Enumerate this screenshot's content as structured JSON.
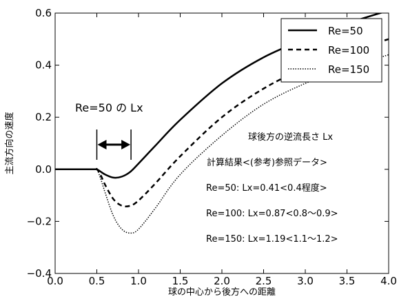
{
  "chart_data": {
    "type": "line",
    "title": "",
    "xlabel": "球の中心から後方への距離",
    "ylabel": "主流方向の速度",
    "xlim": [
      0.0,
      4.0
    ],
    "ylim": [
      -0.4,
      0.6
    ],
    "x_ticks": [
      "0.0",
      "0.5",
      "1.0",
      "1.5",
      "2.0",
      "2.5",
      "3.0",
      "3.5",
      "4.0"
    ],
    "y_ticks": [
      "0.6",
      "0.4",
      "0.2",
      "0.0",
      "−0.2",
      "−0.4"
    ],
    "grid": false,
    "legend_position": "top-right",
    "series": [
      {
        "name": "Re=50",
        "style": "solid",
        "color": "#000000",
        "x": [
          0.0,
          0.45,
          0.5,
          0.55,
          0.6,
          0.7,
          0.8,
          0.9,
          1.0,
          1.2,
          1.5,
          2.0,
          2.5,
          3.0,
          3.5,
          4.0
        ],
        "y": [
          0.0,
          0.0,
          0.0,
          -0.01,
          -0.02,
          -0.032,
          -0.028,
          -0.01,
          0.022,
          0.09,
          0.19,
          0.33,
          0.43,
          0.5,
          0.56,
          0.61
        ]
      },
      {
        "name": "Re=100",
        "style": "dashed",
        "color": "#000000",
        "x": [
          0.0,
          0.45,
          0.5,
          0.55,
          0.6,
          0.7,
          0.8,
          0.9,
          1.0,
          1.2,
          1.5,
          2.0,
          2.5,
          3.0,
          3.5,
          4.0
        ],
        "y": [
          0.0,
          0.0,
          0.0,
          -0.025,
          -0.06,
          -0.115,
          -0.14,
          -0.14,
          -0.12,
          -0.055,
          0.05,
          0.2,
          0.31,
          0.39,
          0.45,
          0.5
        ]
      },
      {
        "name": "Re=150",
        "style": "dotted",
        "color": "#000000",
        "x": [
          0.0,
          0.45,
          0.5,
          0.55,
          0.6,
          0.7,
          0.8,
          0.9,
          1.0,
          1.2,
          1.5,
          2.0,
          2.5,
          3.0,
          3.5,
          4.0
        ],
        "y": [
          0.0,
          0.0,
          0.0,
          -0.04,
          -0.09,
          -0.18,
          -0.23,
          -0.245,
          -0.23,
          -0.15,
          -0.02,
          0.13,
          0.25,
          0.33,
          0.39,
          0.44
        ]
      }
    ],
    "annotations": {
      "lx_label": "Re=50 の Lx",
      "lines": [
        "球後方の逆流長さ Lx",
        "計算結果<(参考)参照データ>",
        "Re=50: Lx=0.41<0.4程度>",
        "Re=100: Lx=0.87<0.8〜0.9>",
        "Re=150: Lx=1.19<1.1〜1.2>"
      ],
      "lx_arrow_range": [
        0.5,
        0.91
      ]
    }
  }
}
